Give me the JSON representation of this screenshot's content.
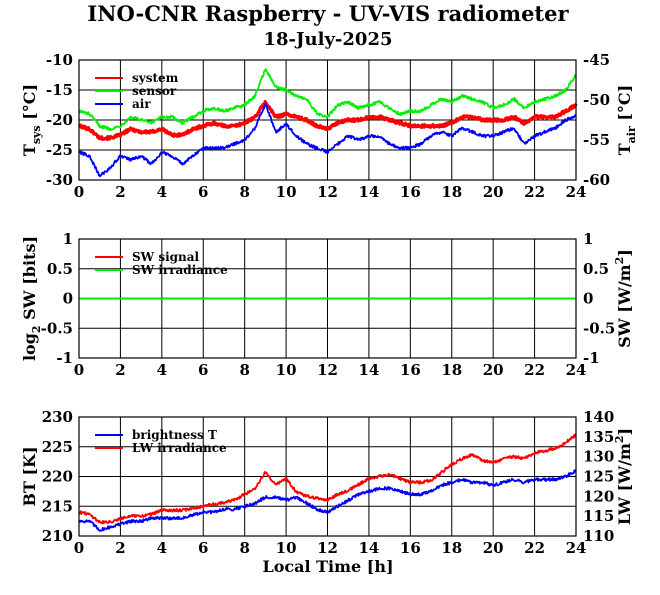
{
  "figure": {
    "title": "INO-CNR Raspberry - UV-VIS radiometer",
    "subtitle": "18-July-2025",
    "xlabel": "Local Time [h]"
  },
  "chart_data": [
    {
      "type": "line",
      "name": "temperature-panel",
      "xlim": [
        0,
        24
      ],
      "xticks": [
        0,
        2,
        4,
        6,
        8,
        10,
        12,
        14,
        16,
        18,
        20,
        22,
        24
      ],
      "ylim": [
        -30,
        -10
      ],
      "yticks": [
        -10,
        -15,
        -20,
        -25,
        -30
      ],
      "ylim_right": [
        -60,
        -45
      ],
      "yticks_right": [
        -45,
        -50,
        -55,
        -60
      ],
      "ylabel_left": {
        "main": "T",
        "sub": "sys",
        "unit": " [°C]"
      },
      "ylabel_right": {
        "main": "T",
        "sub": "air",
        "unit": " [°C]"
      },
      "grid": true,
      "legend": "top-left",
      "colors": {
        "system": "#ff0000",
        "sensor": "#00ee00",
        "air": "#0000ff"
      },
      "series": [
        {
          "name": "system",
          "axis": "left",
          "x": [
            0,
            0.5,
            1,
            1.5,
            2,
            2.5,
            3,
            3.5,
            4,
            4.5,
            5,
            5.5,
            6,
            6.5,
            7,
            7.5,
            8,
            8.5,
            9,
            9.5,
            10,
            10.5,
            11,
            11.5,
            12,
            12.5,
            13,
            13.5,
            14,
            14.5,
            15,
            15.5,
            16,
            16.5,
            17,
            17.5,
            18,
            18.5,
            19,
            19.5,
            20,
            20.5,
            21,
            21.5,
            22,
            22.5,
            23,
            23.5,
            24
          ],
          "y": [
            -21,
            -21.5,
            -23,
            -23,
            -22.5,
            -21.5,
            -22,
            -22,
            -21.5,
            -22.5,
            -22.5,
            -21.5,
            -21,
            -20.5,
            -21,
            -21,
            -20.5,
            -19.5,
            -17,
            -19.5,
            -19,
            -19.5,
            -20,
            -21,
            -21.5,
            -20.5,
            -20,
            -20,
            -19.5,
            -19.5,
            -20,
            -20.5,
            -21,
            -21,
            -21,
            -21,
            -20.5,
            -19.5,
            -19.5,
            -20,
            -20,
            -20,
            -19.5,
            -20.5,
            -19.5,
            -19.5,
            -19.5,
            -18.5,
            -17.5
          ]
        },
        {
          "name": "sensor",
          "axis": "left",
          "x": [
            0,
            0.5,
            1,
            1.5,
            2,
            2.5,
            3,
            3.5,
            4,
            4.5,
            5,
            5.5,
            6,
            6.5,
            7,
            7.5,
            8,
            8.5,
            9,
            9.5,
            10,
            10.5,
            11,
            11.5,
            12,
            12.5,
            13,
            13.5,
            14,
            14.5,
            15,
            15.5,
            16,
            16.5,
            17,
            17.5,
            18,
            18.5,
            19,
            19.5,
            20,
            20.5,
            21,
            21.5,
            22,
            22.5,
            23,
            23.5,
            24
          ],
          "y": [
            -18.5,
            -19,
            -21,
            -21.5,
            -21,
            -19.5,
            -20,
            -20.5,
            -19.5,
            -19.5,
            -20.5,
            -19.5,
            -18.5,
            -18,
            -18.5,
            -18,
            -17.5,
            -16,
            -11.5,
            -14.5,
            -15,
            -16,
            -16.5,
            -19,
            -19.5,
            -17.5,
            -17,
            -18,
            -17.5,
            -17,
            -18,
            -19,
            -18.5,
            -18.5,
            -17.5,
            -16.5,
            -17,
            -16,
            -16.5,
            -17,
            -18,
            -17.5,
            -16.5,
            -18,
            -17,
            -16.5,
            -16,
            -15,
            -12.5
          ]
        },
        {
          "name": "air",
          "axis": "right",
          "x": [
            0,
            0.5,
            1,
            1.5,
            2,
            2.5,
            3,
            3.5,
            4,
            4.5,
            5,
            5.5,
            6,
            6.5,
            7,
            7.5,
            8,
            8.5,
            9,
            9.5,
            10,
            10.5,
            11,
            11.5,
            12,
            12.5,
            13,
            13.5,
            14,
            14.5,
            15,
            15.5,
            16,
            16.5,
            17,
            17.5,
            18,
            18.5,
            19,
            19.5,
            20,
            20.5,
            21,
            21.5,
            22,
            22.5,
            23,
            23.5,
            24
          ],
          "y": [
            -56.5,
            -57,
            -59.5,
            -58.5,
            -57,
            -57.5,
            -57,
            -58,
            -56.5,
            -57,
            -58,
            -57,
            -56,
            -56,
            -56,
            -55.5,
            -55,
            -53.5,
            -50.5,
            -54,
            -53,
            -54.5,
            -55.5,
            -56,
            -56.5,
            -55.5,
            -54.5,
            -55,
            -54.5,
            -54.5,
            -55.5,
            -56,
            -56,
            -55.5,
            -54.5,
            -54,
            -54.5,
            -53.5,
            -54,
            -54.5,
            -54.5,
            -54,
            -53.5,
            -55.5,
            -54.5,
            -54,
            -53.5,
            -52.5,
            -52
          ]
        }
      ]
    },
    {
      "type": "line",
      "name": "shortwave-panel",
      "xlim": [
        0,
        24
      ],
      "xticks": [
        0,
        2,
        4,
        6,
        8,
        10,
        12,
        14,
        16,
        18,
        20,
        22,
        24
      ],
      "ylim": [
        -1,
        1
      ],
      "yticks": [
        1,
        0.5,
        0,
        -0.5,
        -1
      ],
      "ylim_right": [
        -1,
        1
      ],
      "yticks_right": [
        1,
        0.5,
        0,
        -0.5,
        -1
      ],
      "ylabel_left": {
        "pre": "log",
        "sub": "2",
        "post": " SW [bits]"
      },
      "ylabel_right": {
        "main": "SW [W/m",
        "sup": "2",
        "post": "]"
      },
      "grid": true,
      "legend": "top-left",
      "colors": {
        "SW signal": "#ff0000",
        "SW irradiance": "#00ee00"
      },
      "series": [
        {
          "name": "SW signal",
          "axis": "left",
          "x": [
            0,
            24
          ],
          "y": [
            0,
            0
          ]
        },
        {
          "name": "SW irradiance",
          "axis": "right",
          "x": [
            0,
            24
          ],
          "y": [
            0,
            0
          ]
        }
      ]
    },
    {
      "type": "line",
      "name": "longwave-panel",
      "xlim": [
        0,
        24
      ],
      "xticks": [
        0,
        2,
        4,
        6,
        8,
        10,
        12,
        14,
        16,
        18,
        20,
        22,
        24
      ],
      "ylim": [
        210,
        230
      ],
      "yticks": [
        230,
        225,
        220,
        215,
        210
      ],
      "ylim_right": [
        110,
        140
      ],
      "yticks_right": [
        140,
        135,
        130,
        125,
        120,
        115,
        110
      ],
      "ylabel_left": {
        "main": "BT [K]"
      },
      "ylabel_right": {
        "main": "LW [W/m",
        "sup": "2",
        "post": "]"
      },
      "grid": true,
      "legend": "top-left",
      "colors": {
        "brightness T": "#0000ff",
        "LW irradiance": "#ff0000"
      },
      "series": [
        {
          "name": "brightness T",
          "axis": "left",
          "x": [
            0,
            0.5,
            1,
            1.5,
            2,
            2.5,
            3,
            3.5,
            4,
            4.5,
            5,
            5.5,
            6,
            6.5,
            7,
            7.5,
            8,
            8.5,
            9,
            9.5,
            10,
            10.5,
            11,
            11.5,
            12,
            12.5,
            13,
            13.5,
            14,
            14.5,
            15,
            15.5,
            16,
            16.5,
            17,
            17.5,
            18,
            18.5,
            19,
            19.5,
            20,
            20.5,
            21,
            21.5,
            22,
            22.5,
            23,
            23.5,
            24
          ],
          "y": [
            212.5,
            212.5,
            211,
            211.5,
            212,
            212.5,
            212.5,
            213,
            213,
            213,
            213,
            213.5,
            214,
            214,
            214.5,
            214.5,
            215,
            215.5,
            216.5,
            216.5,
            216,
            216.5,
            215.5,
            214.5,
            214,
            215,
            216,
            217,
            217.5,
            218,
            218,
            217.5,
            217,
            217,
            217.5,
            218.5,
            219,
            219.5,
            219,
            219,
            218.5,
            219,
            219.5,
            219,
            219.5,
            219.5,
            219.5,
            220,
            221
          ]
        },
        {
          "name": "LW irradiance",
          "axis": "right",
          "x": [
            0,
            0.5,
            1,
            1.5,
            2,
            2.5,
            3,
            3.5,
            4,
            4.5,
            5,
            5.5,
            6,
            6.5,
            7,
            7.5,
            8,
            8.5,
            9,
            9.5,
            10,
            10.5,
            11,
            11.5,
            12,
            12.5,
            13,
            13.5,
            14,
            14.5,
            15,
            15.5,
            16,
            16.5,
            17,
            17.5,
            18,
            18.5,
            19,
            19.5,
            20,
            20.5,
            21,
            21.5,
            22,
            22.5,
            23,
            23.5,
            24
          ],
          "y": [
            116,
            115.5,
            113.5,
            113.5,
            114.5,
            115,
            115,
            115.5,
            116.5,
            116.5,
            116.5,
            117,
            117.5,
            118,
            118.5,
            119,
            120.5,
            122,
            126,
            123,
            124.5,
            121,
            120,
            119.5,
            119,
            120.5,
            121.5,
            123,
            124.5,
            125,
            125.5,
            124.5,
            123.5,
            123.5,
            124,
            126,
            128,
            129.5,
            130.5,
            129,
            128.5,
            129.5,
            130,
            129.5,
            131,
            131.5,
            132,
            133.5,
            135.5
          ]
        }
      ]
    }
  ]
}
